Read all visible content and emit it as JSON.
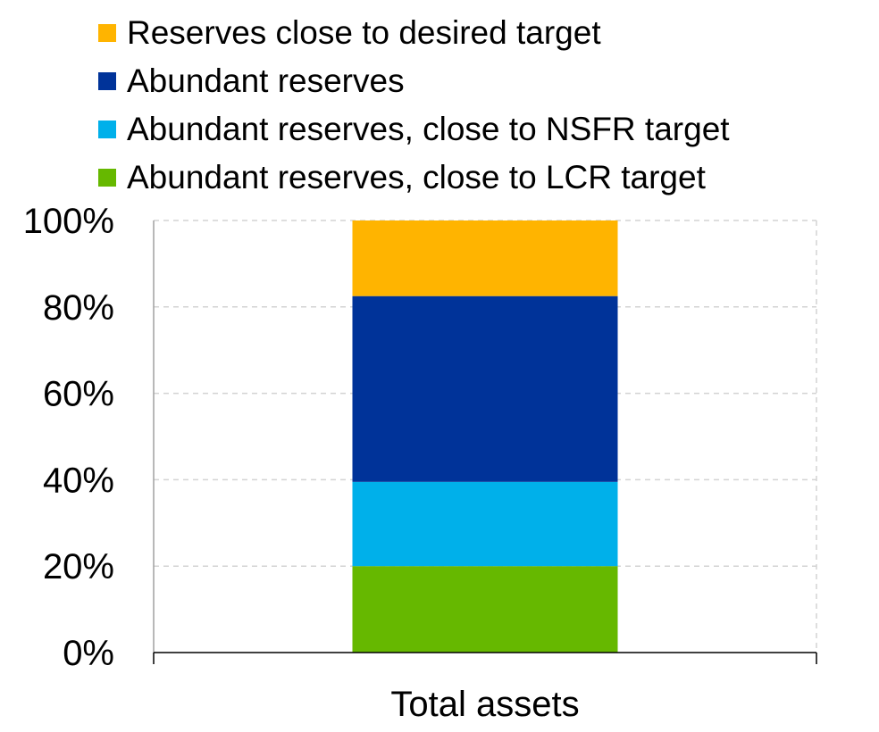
{
  "chart_data": {
    "type": "bar",
    "stacked": true,
    "categories": [
      "Total assets"
    ],
    "series": [
      {
        "name": "Abundant reserves, close to LCR target",
        "values": [
          20
        ],
        "color": "#66b800"
      },
      {
        "name": "Abundant reserves, close to NSFR target",
        "values": [
          19.5
        ],
        "color": "#00b0ea"
      },
      {
        "name": "Abundant reserves",
        "values": [
          43
        ],
        "color": "#003399"
      },
      {
        "name": "Reserves close to desired target",
        "values": [
          17.5
        ],
        "color": "#ffb400"
      }
    ],
    "legend_order": [
      3,
      2,
      1,
      0
    ],
    "yticks": [
      "0%",
      "20%",
      "40%",
      "60%",
      "80%",
      "100%"
    ],
    "ytick_values": [
      0,
      20,
      40,
      60,
      80,
      100
    ],
    "ylim": [
      0,
      100
    ],
    "grid": true,
    "legend_position": "top-left",
    "title": "",
    "xlabel": "",
    "ylabel": ""
  }
}
